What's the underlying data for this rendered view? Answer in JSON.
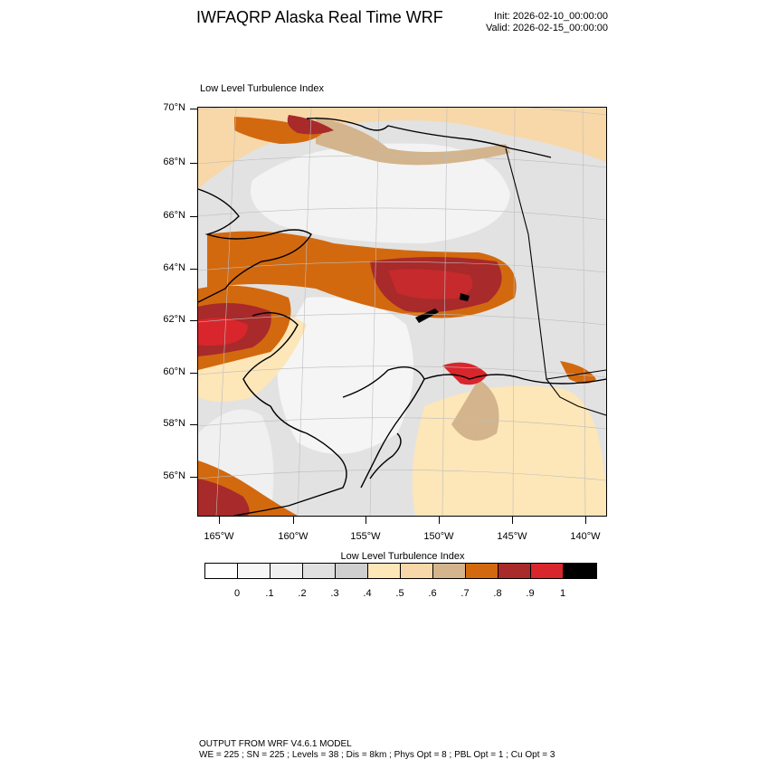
{
  "header": {
    "title": "IWFAQRP Alaska Real Time WRF",
    "init": "Init: 2026-02-10_00:00:00",
    "valid": "Valid: 2026-02-15_00:00:00"
  },
  "map": {
    "subtitle": "Low Level Turbulence Index",
    "lat_labels": [
      "70°N",
      "68°N",
      "66°N",
      "64°N",
      "62°N",
      "60°N",
      "58°N",
      "56°N"
    ],
    "lon_labels": [
      "165°W",
      "160°W",
      "155°W",
      "150°W",
      "145°W",
      "140°W"
    ],
    "colors": {
      "c0": "#ffffff",
      "c1": "#f7f7f7",
      "c2": "#efefef",
      "c3": "#e0e0e0",
      "c4": "#cfcfcf",
      "c5": "#fde6b8",
      "c6": "#f8d8a8",
      "c7": "#d3b48c",
      "c8": "#d2690f",
      "c9": "#a82a2a",
      "c10": "#d8262c",
      "c11": "#000000"
    }
  },
  "colorbar": {
    "title": "Low Level Turbulence Index",
    "labels": [
      "0",
      ".1",
      ".2",
      ".3",
      ".4",
      ".5",
      ".6",
      ".7",
      ".8",
      ".9",
      "1"
    ],
    "colors": [
      "#ffffff",
      "#f7f7f7",
      "#efefef",
      "#e0e0e0",
      "#cfcfcf",
      "#fde6b8",
      "#f8d8a8",
      "#d3b48c",
      "#d2690f",
      "#a82a2a",
      "#d8262c",
      "#000000"
    ]
  },
  "footer": {
    "line1": "OUTPUT FROM WRF V4.6.1 MODEL",
    "line2": "WE = 225 ; SN = 225 ; Levels = 38 ; Dis = 8km ; Phys Opt = 8 ; PBL Opt = 1 ; Cu Opt = 3"
  }
}
